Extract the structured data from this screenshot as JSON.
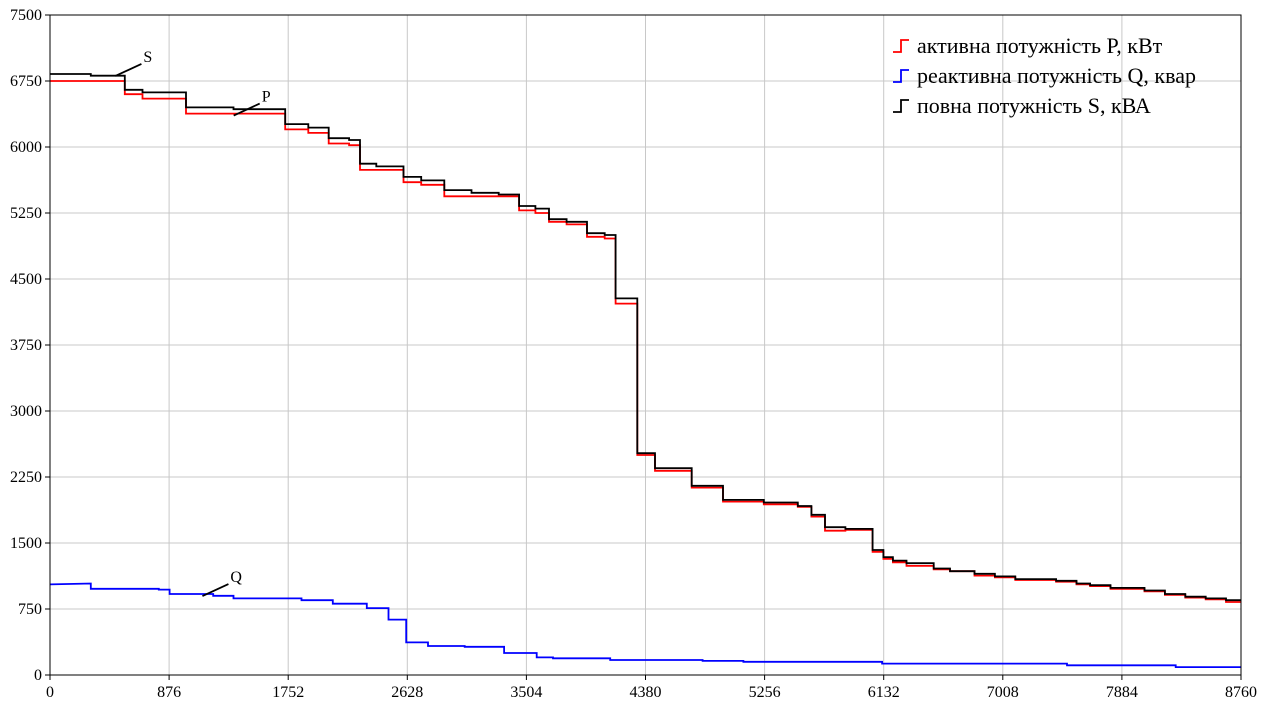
{
  "chart_data": {
    "type": "line",
    "title": "",
    "xlabel": "",
    "ylabel": "",
    "xlim": [
      0,
      8760
    ],
    "ylim": [
      0,
      7500
    ],
    "x_ticks": [
      "0",
      "876",
      "1752",
      "2628",
      "3504",
      "4380",
      "5256",
      "6132",
      "7008",
      "7884",
      "8760"
    ],
    "y_ticks": [
      "0",
      "750",
      "1500",
      "2250",
      "3000",
      "3750",
      "4500",
      "5250",
      "6000",
      "6750",
      "7500"
    ],
    "grid": true,
    "legend_position": "top-right",
    "step": true,
    "series": [
      {
        "name": "активна потужність P, кВт",
        "color": "#ff0000",
        "points": [
          [
            0,
            6750
          ],
          [
            550,
            6750
          ],
          [
            550,
            6600
          ],
          [
            680,
            6600
          ],
          [
            680,
            6550
          ],
          [
            1000,
            6550
          ],
          [
            1000,
            6380
          ],
          [
            1730,
            6380
          ],
          [
            1730,
            6200
          ],
          [
            1900,
            6200
          ],
          [
            1900,
            6160
          ],
          [
            2050,
            6160
          ],
          [
            2050,
            6040
          ],
          [
            2200,
            6040
          ],
          [
            2200,
            6020
          ],
          [
            2280,
            6020
          ],
          [
            2280,
            5740
          ],
          [
            2600,
            5740
          ],
          [
            2600,
            5600
          ],
          [
            2730,
            5600
          ],
          [
            2730,
            5570
          ],
          [
            2900,
            5570
          ],
          [
            2900,
            5440
          ],
          [
            3450,
            5440
          ],
          [
            3450,
            5280
          ],
          [
            3570,
            5280
          ],
          [
            3570,
            5250
          ],
          [
            3670,
            5250
          ],
          [
            3670,
            5150
          ],
          [
            3800,
            5150
          ],
          [
            3800,
            5120
          ],
          [
            3950,
            5120
          ],
          [
            3950,
            4980
          ],
          [
            4080,
            4980
          ],
          [
            4080,
            4960
          ],
          [
            4160,
            4960
          ],
          [
            4160,
            4220
          ],
          [
            4320,
            4220
          ],
          [
            4320,
            2500
          ],
          [
            4450,
            2500
          ],
          [
            4450,
            2320
          ],
          [
            4720,
            2320
          ],
          [
            4720,
            2130
          ],
          [
            4950,
            2130
          ],
          [
            4950,
            1970
          ],
          [
            5250,
            1970
          ],
          [
            5250,
            1940
          ],
          [
            5500,
            1940
          ],
          [
            5500,
            1910
          ],
          [
            5600,
            1910
          ],
          [
            5600,
            1800
          ],
          [
            5700,
            1800
          ],
          [
            5700,
            1640
          ],
          [
            5850,
            1640
          ],
          [
            5850,
            1650
          ],
          [
            6050,
            1650
          ],
          [
            6050,
            1400
          ],
          [
            6130,
            1400
          ],
          [
            6130,
            1320
          ],
          [
            6200,
            1320
          ],
          [
            6200,
            1280
          ],
          [
            6300,
            1280
          ],
          [
            6300,
            1240
          ],
          [
            6500,
            1240
          ],
          [
            6500,
            1200
          ],
          [
            6620,
            1200
          ],
          [
            6620,
            1180
          ],
          [
            6800,
            1180
          ],
          [
            6800,
            1130
          ],
          [
            6950,
            1130
          ],
          [
            6950,
            1110
          ],
          [
            7100,
            1110
          ],
          [
            7100,
            1080
          ],
          [
            7400,
            1080
          ],
          [
            7400,
            1060
          ],
          [
            7550,
            1060
          ],
          [
            7550,
            1030
          ],
          [
            7650,
            1030
          ],
          [
            7650,
            1010
          ],
          [
            7800,
            1010
          ],
          [
            7800,
            980
          ],
          [
            8050,
            980
          ],
          [
            8050,
            950
          ],
          [
            8200,
            950
          ],
          [
            8200,
            910
          ],
          [
            8350,
            910
          ],
          [
            8350,
            880
          ],
          [
            8500,
            880
          ],
          [
            8500,
            860
          ],
          [
            8650,
            860
          ],
          [
            8650,
            830
          ],
          [
            8760,
            830
          ]
        ]
      },
      {
        "name": "реактивна потужність Q, квар",
        "color": "#0000ff",
        "points": [
          [
            0,
            1030
          ],
          [
            300,
            1040
          ],
          [
            300,
            980
          ],
          [
            800,
            980
          ],
          [
            800,
            970
          ],
          [
            880,
            970
          ],
          [
            880,
            920
          ],
          [
            1200,
            920
          ],
          [
            1200,
            900
          ],
          [
            1350,
            900
          ],
          [
            1350,
            870
          ],
          [
            1850,
            870
          ],
          [
            1850,
            850
          ],
          [
            2080,
            850
          ],
          [
            2080,
            810
          ],
          [
            2330,
            810
          ],
          [
            2330,
            760
          ],
          [
            2490,
            760
          ],
          [
            2490,
            630
          ],
          [
            2620,
            630
          ],
          [
            2620,
            370
          ],
          [
            2780,
            370
          ],
          [
            2780,
            330
          ],
          [
            3050,
            330
          ],
          [
            3050,
            320
          ],
          [
            3340,
            320
          ],
          [
            3340,
            250
          ],
          [
            3580,
            250
          ],
          [
            3580,
            200
          ],
          [
            3700,
            200
          ],
          [
            3700,
            190
          ],
          [
            4120,
            190
          ],
          [
            4120,
            170
          ],
          [
            4800,
            170
          ],
          [
            4800,
            160
          ],
          [
            5100,
            160
          ],
          [
            5100,
            150
          ],
          [
            6120,
            150
          ],
          [
            6120,
            130
          ],
          [
            7480,
            130
          ],
          [
            7480,
            110
          ],
          [
            8280,
            110
          ],
          [
            8280,
            90
          ],
          [
            8760,
            90
          ]
        ]
      },
      {
        "name": "повна потужність S, кВА",
        "color": "#000000",
        "points": [
          [
            0,
            6830
          ],
          [
            300,
            6830
          ],
          [
            300,
            6810
          ],
          [
            550,
            6810
          ],
          [
            550,
            6650
          ],
          [
            680,
            6650
          ],
          [
            680,
            6620
          ],
          [
            1000,
            6620
          ],
          [
            1000,
            6450
          ],
          [
            1350,
            6450
          ],
          [
            1350,
            6430
          ],
          [
            1730,
            6430
          ],
          [
            1730,
            6260
          ],
          [
            1900,
            6260
          ],
          [
            1900,
            6220
          ],
          [
            2050,
            6220
          ],
          [
            2050,
            6100
          ],
          [
            2200,
            6100
          ],
          [
            2200,
            6080
          ],
          [
            2280,
            6080
          ],
          [
            2280,
            5810
          ],
          [
            2400,
            5810
          ],
          [
            2400,
            5780
          ],
          [
            2600,
            5780
          ],
          [
            2600,
            5660
          ],
          [
            2730,
            5660
          ],
          [
            2730,
            5620
          ],
          [
            2900,
            5620
          ],
          [
            2900,
            5510
          ],
          [
            3100,
            5510
          ],
          [
            3100,
            5480
          ],
          [
            3300,
            5480
          ],
          [
            3300,
            5460
          ],
          [
            3450,
            5460
          ],
          [
            3450,
            5330
          ],
          [
            3570,
            5330
          ],
          [
            3570,
            5300
          ],
          [
            3670,
            5300
          ],
          [
            3670,
            5180
          ],
          [
            3800,
            5180
          ],
          [
            3800,
            5150
          ],
          [
            3950,
            5150
          ],
          [
            3950,
            5020
          ],
          [
            4080,
            5020
          ],
          [
            4080,
            5000
          ],
          [
            4160,
            5000
          ],
          [
            4160,
            4280
          ],
          [
            4320,
            4280
          ],
          [
            4320,
            2520
          ],
          [
            4450,
            2520
          ],
          [
            4450,
            2350
          ],
          [
            4720,
            2350
          ],
          [
            4720,
            2150
          ],
          [
            4950,
            2150
          ],
          [
            4950,
            1990
          ],
          [
            5250,
            1990
          ],
          [
            5250,
            1960
          ],
          [
            5500,
            1960
          ],
          [
            5500,
            1920
          ],
          [
            5600,
            1920
          ],
          [
            5600,
            1820
          ],
          [
            5700,
            1820
          ],
          [
            5700,
            1680
          ],
          [
            5850,
            1680
          ],
          [
            5850,
            1660
          ],
          [
            6050,
            1660
          ],
          [
            6050,
            1420
          ],
          [
            6130,
            1420
          ],
          [
            6130,
            1340
          ],
          [
            6200,
            1340
          ],
          [
            6200,
            1300
          ],
          [
            6300,
            1300
          ],
          [
            6300,
            1270
          ],
          [
            6500,
            1270
          ],
          [
            6500,
            1210
          ],
          [
            6620,
            1210
          ],
          [
            6620,
            1180
          ],
          [
            6800,
            1180
          ],
          [
            6800,
            1150
          ],
          [
            6950,
            1150
          ],
          [
            6950,
            1120
          ],
          [
            7100,
            1120
          ],
          [
            7100,
            1090
          ],
          [
            7400,
            1090
          ],
          [
            7400,
            1070
          ],
          [
            7550,
            1070
          ],
          [
            7550,
            1040
          ],
          [
            7650,
            1040
          ],
          [
            7650,
            1020
          ],
          [
            7800,
            1020
          ],
          [
            7800,
            990
          ],
          [
            8050,
            990
          ],
          [
            8050,
            960
          ],
          [
            8200,
            960
          ],
          [
            8200,
            920
          ],
          [
            8350,
            920
          ],
          [
            8350,
            890
          ],
          [
            8500,
            890
          ],
          [
            8500,
            870
          ],
          [
            8650,
            870
          ],
          [
            8650,
            850
          ],
          [
            8760,
            850
          ]
        ]
      }
    ],
    "annotations": [
      {
        "label": "S",
        "x": 540,
        "y": 6830
      },
      {
        "label": "P",
        "x": 1410,
        "y": 6380
      },
      {
        "label": "Q",
        "x": 1180,
        "y": 920
      }
    ]
  }
}
